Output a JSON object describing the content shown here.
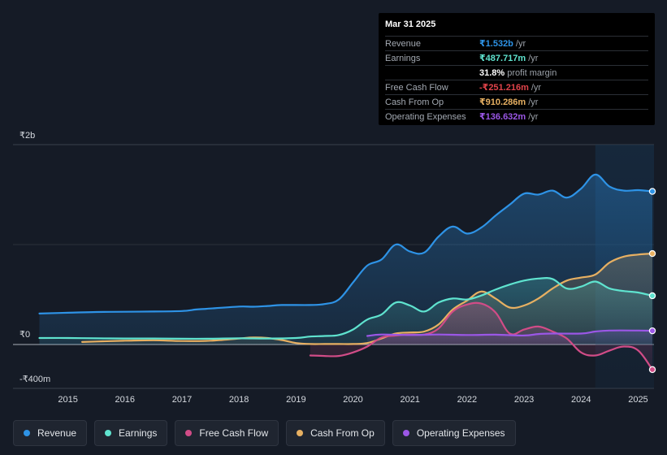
{
  "tooltip": {
    "date": "Mar 31 2025",
    "rows": [
      {
        "label": "Revenue",
        "value": "₹1.532b",
        "unit": "/yr",
        "color": "#2e93e6"
      },
      {
        "label": "Earnings",
        "value": "₹487.717m",
        "unit": "/yr",
        "color": "#5fe3cf"
      },
      {
        "label": "",
        "value": "31.8%",
        "unit": "profit margin",
        "color": "#ffffff"
      },
      {
        "label": "Free Cash Flow",
        "value": "-₹251.216m",
        "unit": "/yr",
        "color": "#e0434a"
      },
      {
        "label": "Cash From Op",
        "value": "₹910.286m",
        "unit": "/yr",
        "color": "#e7b062"
      },
      {
        "label": "Operating Expenses",
        "value": "₹136.632m",
        "unit": "/yr",
        "color": "#9b57e6"
      }
    ]
  },
  "legend": [
    {
      "label": "Revenue",
      "color": "#2e93e6"
    },
    {
      "label": "Earnings",
      "color": "#5fe3cf"
    },
    {
      "label": "Free Cash Flow",
      "color": "#d14c87"
    },
    {
      "label": "Cash From Op",
      "color": "#e7b062"
    },
    {
      "label": "Operating Expenses",
      "color": "#9b57e6"
    }
  ],
  "chart_data": {
    "type": "area",
    "title": "",
    "xlabel": "",
    "ylabel": "",
    "y_tick_labels": [
      {
        "value": 2000,
        "label": "₹2b"
      },
      {
        "value": 0,
        "label": "₹0"
      },
      {
        "value": -400,
        "label": "-₹400m"
      }
    ],
    "ylim": [
      -400,
      2000
    ],
    "xlim": [
      2014.5,
      2025.25
    ],
    "x_ticks": [
      2015,
      2016,
      2017,
      2018,
      2019,
      2020,
      2021,
      2022,
      2023,
      2024,
      2025
    ],
    "highlight_from": 2024.25,
    "series": [
      {
        "name": "Revenue",
        "color": "#2e93e6",
        "points": [
          [
            2014.5,
            310
          ],
          [
            2015,
            318
          ],
          [
            2015.5,
            325
          ],
          [
            2016,
            328
          ],
          [
            2016.5,
            330
          ],
          [
            2017,
            335
          ],
          [
            2017.25,
            350
          ],
          [
            2017.5,
            360
          ],
          [
            2018,
            380
          ],
          [
            2018.25,
            378
          ],
          [
            2018.5,
            385
          ],
          [
            2018.75,
            395
          ],
          [
            2019.25,
            395
          ],
          [
            2019.5,
            405
          ],
          [
            2019.75,
            450
          ],
          [
            2020,
            620
          ],
          [
            2020.25,
            790
          ],
          [
            2020.5,
            850
          ],
          [
            2020.75,
            1000
          ],
          [
            2021,
            930
          ],
          [
            2021.25,
            920
          ],
          [
            2021.5,
            1080
          ],
          [
            2021.75,
            1180
          ],
          [
            2022,
            1110
          ],
          [
            2022.25,
            1170
          ],
          [
            2022.5,
            1290
          ],
          [
            2022.75,
            1400
          ],
          [
            2023,
            1510
          ],
          [
            2023.25,
            1500
          ],
          [
            2023.5,
            1540
          ],
          [
            2023.75,
            1470
          ],
          [
            2024,
            1560
          ],
          [
            2024.25,
            1700
          ],
          [
            2024.5,
            1580
          ],
          [
            2024.75,
            1540
          ],
          [
            2025,
            1545
          ],
          [
            2025.25,
            1532
          ]
        ]
      },
      {
        "name": "Earnings",
        "color": "#5fe3cf",
        "points": [
          [
            2014.5,
            65
          ],
          [
            2015,
            65
          ],
          [
            2015.5,
            62
          ],
          [
            2016,
            60
          ],
          [
            2016.5,
            60
          ],
          [
            2017,
            58
          ],
          [
            2017.5,
            58
          ],
          [
            2018,
            62
          ],
          [
            2018.5,
            60
          ],
          [
            2019,
            65
          ],
          [
            2019.25,
            80
          ],
          [
            2019.5,
            85
          ],
          [
            2019.75,
            95
          ],
          [
            2020,
            150
          ],
          [
            2020.25,
            250
          ],
          [
            2020.5,
            300
          ],
          [
            2020.75,
            420
          ],
          [
            2021,
            390
          ],
          [
            2021.25,
            330
          ],
          [
            2021.5,
            420
          ],
          [
            2021.75,
            460
          ],
          [
            2022,
            450
          ],
          [
            2022.25,
            490
          ],
          [
            2022.5,
            550
          ],
          [
            2022.75,
            600
          ],
          [
            2023,
            640
          ],
          [
            2023.25,
            660
          ],
          [
            2023.5,
            655
          ],
          [
            2023.75,
            560
          ],
          [
            2024,
            580
          ],
          [
            2024.25,
            630
          ],
          [
            2024.5,
            560
          ],
          [
            2024.75,
            535
          ],
          [
            2025,
            520
          ],
          [
            2025.25,
            488
          ]
        ]
      },
      {
        "name": "Free Cash Flow",
        "color": "#d14c87",
        "points": [
          [
            2019.25,
            -110
          ],
          [
            2019.5,
            -115
          ],
          [
            2019.75,
            -115
          ],
          [
            2020,
            -80
          ],
          [
            2020.25,
            -20
          ],
          [
            2020.5,
            70
          ],
          [
            2020.75,
            90
          ],
          [
            2021,
            100
          ],
          [
            2021.25,
            100
          ],
          [
            2021.5,
            160
          ],
          [
            2021.75,
            330
          ],
          [
            2022,
            400
          ],
          [
            2022.25,
            410
          ],
          [
            2022.5,
            320
          ],
          [
            2022.75,
            110
          ],
          [
            2023,
            150
          ],
          [
            2023.25,
            180
          ],
          [
            2023.5,
            130
          ],
          [
            2023.75,
            60
          ],
          [
            2024,
            -80
          ],
          [
            2024.25,
            -110
          ],
          [
            2024.5,
            -60
          ],
          [
            2024.75,
            -20
          ],
          [
            2025,
            -60
          ],
          [
            2025.25,
            -251
          ]
        ]
      },
      {
        "name": "Cash From Op",
        "color": "#e7b062",
        "points": [
          [
            2015.25,
            25
          ],
          [
            2015.5,
            30
          ],
          [
            2016,
            38
          ],
          [
            2016.5,
            42
          ],
          [
            2017,
            35
          ],
          [
            2017.5,
            38
          ],
          [
            2018,
            60
          ],
          [
            2018.25,
            70
          ],
          [
            2018.5,
            65
          ],
          [
            2018.75,
            45
          ],
          [
            2019,
            15
          ],
          [
            2019.25,
            5
          ],
          [
            2019.5,
            5
          ],
          [
            2019.75,
            5
          ],
          [
            2020,
            5
          ],
          [
            2020.25,
            15
          ],
          [
            2020.5,
            60
          ],
          [
            2020.75,
            110
          ],
          [
            2021,
            120
          ],
          [
            2021.25,
            130
          ],
          [
            2021.5,
            200
          ],
          [
            2021.75,
            350
          ],
          [
            2022,
            440
          ],
          [
            2022.25,
            530
          ],
          [
            2022.5,
            460
          ],
          [
            2022.75,
            370
          ],
          [
            2023,
            390
          ],
          [
            2023.25,
            460
          ],
          [
            2023.5,
            560
          ],
          [
            2023.75,
            640
          ],
          [
            2024,
            670
          ],
          [
            2024.25,
            700
          ],
          [
            2024.5,
            820
          ],
          [
            2024.75,
            880
          ],
          [
            2025,
            900
          ],
          [
            2025.25,
            910
          ]
        ]
      },
      {
        "name": "Operating Expenses",
        "color": "#9b57e6",
        "points": [
          [
            2020.25,
            85
          ],
          [
            2020.5,
            100
          ],
          [
            2021,
            95
          ],
          [
            2021.5,
            100
          ],
          [
            2022,
            95
          ],
          [
            2022.5,
            98
          ],
          [
            2023,
            90
          ],
          [
            2023.25,
            105
          ],
          [
            2023.5,
            110
          ],
          [
            2024,
            110
          ],
          [
            2024.25,
            130
          ],
          [
            2024.5,
            140
          ],
          [
            2025,
            140
          ],
          [
            2025.25,
            137
          ]
        ]
      }
    ]
  }
}
